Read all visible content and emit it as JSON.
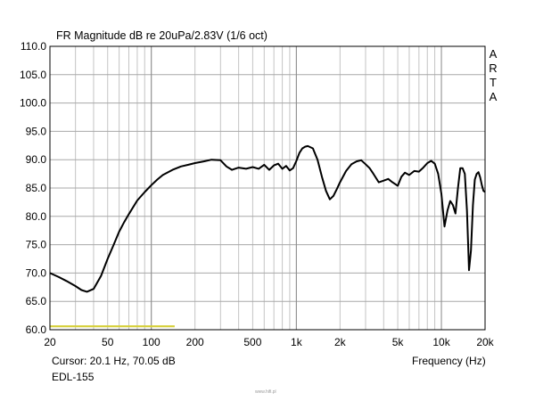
{
  "chart_data": {
    "type": "line",
    "title": "FR Magnitude dB re 20uPa/2.83V (1/6 oct)",
    "xlabel": "Frequency (Hz)",
    "ylabel": "",
    "x_scale": "log",
    "xlim": [
      20,
      20000
    ],
    "ylim": [
      60,
      110
    ],
    "grid": true,
    "y_ticks": [
      {
        "value": 60,
        "label": "60.0"
      },
      {
        "value": 65,
        "label": "65.0"
      },
      {
        "value": 70,
        "label": "70.0"
      },
      {
        "value": 75,
        "label": "75.0"
      },
      {
        "value": 80,
        "label": "80.0"
      },
      {
        "value": 85,
        "label": "85.0"
      },
      {
        "value": 90,
        "label": "90.0"
      },
      {
        "value": 95,
        "label": "95.0"
      },
      {
        "value": 100,
        "label": "100.0"
      },
      {
        "value": 105,
        "label": "105.0"
      },
      {
        "value": 110,
        "label": "110.0"
      }
    ],
    "x_ticks": [
      {
        "value": 20,
        "label": "20"
      },
      {
        "value": 50,
        "label": "50"
      },
      {
        "value": 100,
        "label": "100"
      },
      {
        "value": 200,
        "label": "200"
      },
      {
        "value": 500,
        "label": "500"
      },
      {
        "value": 1000,
        "label": "1k"
      },
      {
        "value": 2000,
        "label": "2k"
      },
      {
        "value": 5000,
        "label": "5k"
      },
      {
        "value": 10000,
        "label": "10k"
      },
      {
        "value": 20000,
        "label": "20k"
      }
    ],
    "series": [
      {
        "name": "EDL-155",
        "color": "#000000",
        "x": [
          20,
          23,
          26,
          30,
          33,
          36,
          40,
          45,
          50,
          55,
          60,
          65,
          70,
          80,
          90,
          100,
          110,
          120,
          140,
          160,
          180,
          200,
          230,
          260,
          300,
          330,
          360,
          400,
          450,
          500,
          550,
          600,
          650,
          700,
          750,
          800,
          850,
          900,
          950,
          1000,
          1050,
          1100,
          1150,
          1200,
          1300,
          1400,
          1500,
          1600,
          1700,
          1800,
          1900,
          2000,
          2200,
          2400,
          2600,
          2800,
          3000,
          3200,
          3400,
          3700,
          4000,
          4300,
          4600,
          5000,
          5300,
          5600,
          6000,
          6500,
          7000,
          7500,
          8000,
          8500,
          9000,
          9500,
          10000,
          10500,
          11000,
          11500,
          12000,
          12500,
          13000,
          13500,
          14000,
          14500,
          15000,
          15500,
          16000,
          16500,
          17000,
          17500,
          18000,
          18500,
          19000,
          19500,
          20000
        ],
        "values": [
          70.0,
          69.3,
          68.6,
          67.7,
          67.0,
          66.7,
          67.2,
          69.5,
          72.5,
          75.0,
          77.3,
          79.0,
          80.4,
          82.8,
          84.3,
          85.5,
          86.5,
          87.3,
          88.2,
          88.8,
          89.1,
          89.4,
          89.7,
          90.0,
          89.9,
          88.8,
          88.2,
          88.6,
          88.4,
          88.7,
          88.4,
          89.1,
          88.2,
          89.0,
          89.3,
          88.4,
          88.9,
          88.1,
          88.5,
          89.8,
          91.2,
          92.0,
          92.3,
          92.4,
          92.0,
          90.0,
          87.0,
          84.5,
          83.0,
          83.6,
          84.8,
          86.0,
          88.0,
          89.2,
          89.7,
          89.9,
          89.2,
          88.5,
          87.5,
          86.0,
          86.3,
          86.6,
          86.0,
          85.4,
          87.0,
          87.7,
          87.3,
          88.0,
          87.9,
          88.6,
          89.4,
          89.8,
          89.3,
          87.5,
          84.0,
          78.2,
          81.0,
          82.7,
          82.0,
          80.5,
          85.0,
          88.5,
          88.5,
          87.5,
          81.0,
          70.5,
          74.0,
          82.0,
          86.5,
          87.5,
          87.8,
          86.9,
          85.5,
          84.5,
          84.3
        ]
      },
      {
        "name": "yellow-marker",
        "color": "#d6cf3a",
        "x": [
          20,
          145
        ],
        "values": [
          60.6,
          60.6
        ]
      }
    ]
  },
  "labels": {
    "title": "FR Magnitude dB re 20uPa/2.83V (1/6 oct)",
    "arta": [
      "A",
      "R",
      "T",
      "A"
    ],
    "cursor": "Cursor: 20.1 Hz, 70.05 dB",
    "model": "EDL-155",
    "xlabel": "Frequency (Hz)",
    "watermark": "www.hifi.pl"
  }
}
